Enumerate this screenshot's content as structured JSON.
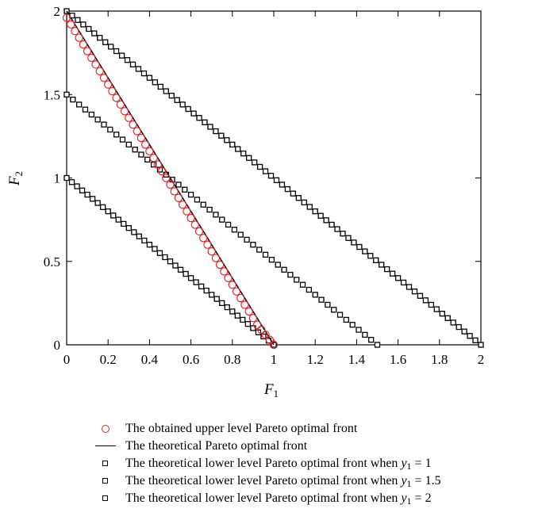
{
  "chart_data": {
    "type": "scatter",
    "xlabel": "F",
    "xlabel_sub": "1",
    "ylabel": "F",
    "ylabel_sub": "2",
    "xlim": [
      0,
      2
    ],
    "ylim": [
      0,
      2
    ],
    "x_ticks": [
      "0",
      "0.2",
      "0.4",
      "0.6",
      "0.8",
      "1",
      "1.2",
      "1.4",
      "1.6",
      "1.8",
      "2"
    ],
    "y_ticks": [
      "0",
      "0.5",
      "1",
      "1.5",
      "2"
    ],
    "grid": false,
    "legend_position": "bottom",
    "series": [
      {
        "name": "The obtained upper level Pareto optimal front",
        "marker": "circle",
        "color": "#e8252a",
        "x": [
          0.0,
          0.02,
          0.04,
          0.06,
          0.08,
          0.1,
          0.12,
          0.14,
          0.16,
          0.18,
          0.2,
          0.22,
          0.24,
          0.26,
          0.28,
          0.3,
          0.32,
          0.34,
          0.36,
          0.38,
          0.4,
          0.42,
          0.44,
          0.46,
          0.48,
          0.5,
          0.52,
          0.54,
          0.56,
          0.58,
          0.6,
          0.62,
          0.64,
          0.66,
          0.68,
          0.7,
          0.72,
          0.74,
          0.76,
          0.78,
          0.8,
          0.82,
          0.84,
          0.86,
          0.88,
          0.9,
          0.92,
          0.94,
          0.96,
          0.98,
          1.0
        ],
        "y": [
          1.96,
          1.92,
          1.88,
          1.84,
          1.8,
          1.76,
          1.72,
          1.68,
          1.64,
          1.6,
          1.56,
          1.52,
          1.48,
          1.44,
          1.4,
          1.36,
          1.32,
          1.28,
          1.24,
          1.2,
          1.16,
          1.12,
          1.08,
          1.04,
          1.0,
          0.96,
          0.92,
          0.88,
          0.84,
          0.8,
          0.76,
          0.72,
          0.68,
          0.64,
          0.6,
          0.56,
          0.52,
          0.48,
          0.44,
          0.4,
          0.36,
          0.32,
          0.28,
          0.24,
          0.2,
          0.16,
          0.12,
          0.09,
          0.06,
          0.03,
          0.0
        ]
      },
      {
        "name": "The theoretical Pareto optimal front",
        "marker": "line",
        "color": "#000000",
        "x": [
          0,
          1
        ],
        "y": [
          2,
          0
        ]
      },
      {
        "name": "The theoretical lower level Pareto optimal front when y1 = 1",
        "marker": "square",
        "color": "#000000",
        "x_range": [
          0,
          1
        ],
        "y_intercept": 1,
        "points": 41
      },
      {
        "name": "The theoretical lower level Pareto optimal front when y1 = 1.5",
        "marker": "square",
        "color": "#000000",
        "x_range": [
          0,
          1.5
        ],
        "y_intercept": 1.5,
        "points": 51
      },
      {
        "name": "The theoretical lower level Pareto optimal front when y1 = 2",
        "marker": "square",
        "color": "#000000",
        "x_range": [
          0,
          2
        ],
        "y_intercept": 2,
        "points": 76
      }
    ]
  },
  "legend": [
    {
      "marker": "circle",
      "text": "The obtained upper level Pareto optimal front",
      "var": "",
      "var_sub": "",
      "suffix": ""
    },
    {
      "marker": "line",
      "text": "The theoretical Pareto optimal front",
      "var": "",
      "var_sub": "",
      "suffix": ""
    },
    {
      "marker": "square",
      "text": "The theoretical lower level Pareto optimal front when ",
      "var": "y",
      "var_sub": "1",
      "suffix": " = 1"
    },
    {
      "marker": "square",
      "text": "The theoretical lower level Pareto optimal front when ",
      "var": "y",
      "var_sub": "1",
      "suffix": " = 1.5"
    },
    {
      "marker": "square",
      "text": "The theoretical lower level Pareto optimal front when ",
      "var": "y",
      "var_sub": "1",
      "suffix": " = 2"
    }
  ]
}
